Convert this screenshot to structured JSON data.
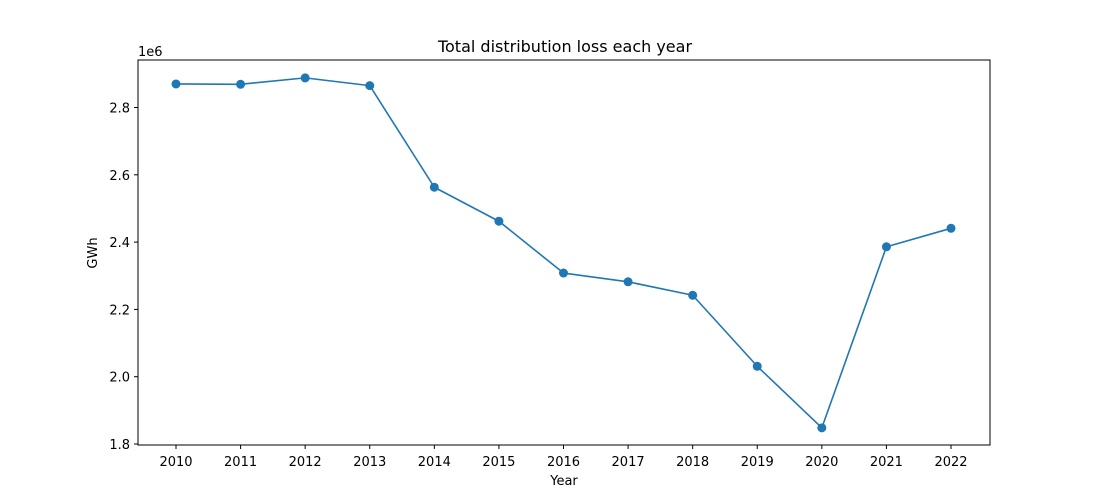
{
  "chart_data": {
    "type": "line",
    "title": "Total distribution loss each year",
    "xlabel": "Year",
    "ylabel": "GWh",
    "y_offset_label": "1e6",
    "x": [
      "2010",
      "2011",
      "2012",
      "2013",
      "2014",
      "2015",
      "2016",
      "2017",
      "2018",
      "2019",
      "2020",
      "2021",
      "2022"
    ],
    "series": [
      {
        "values": [
          2870000,
          2869000,
          2888000,
          2865000,
          2563000,
          2462000,
          2308000,
          2282000,
          2242000,
          2031000,
          1848000,
          2386000,
          2441000
        ],
        "color": "#1f77b4"
      }
    ],
    "ylim": [
      1.8,
      2.9
    ],
    "yticks": [
      "1.8",
      "2.0",
      "2.2",
      "2.4",
      "2.6",
      "2.8"
    ],
    "ytick_values": [
      1.8,
      2.0,
      2.2,
      2.4,
      2.6,
      2.8
    ],
    "y_scale": 1000000,
    "grid": false,
    "markers": true
  }
}
